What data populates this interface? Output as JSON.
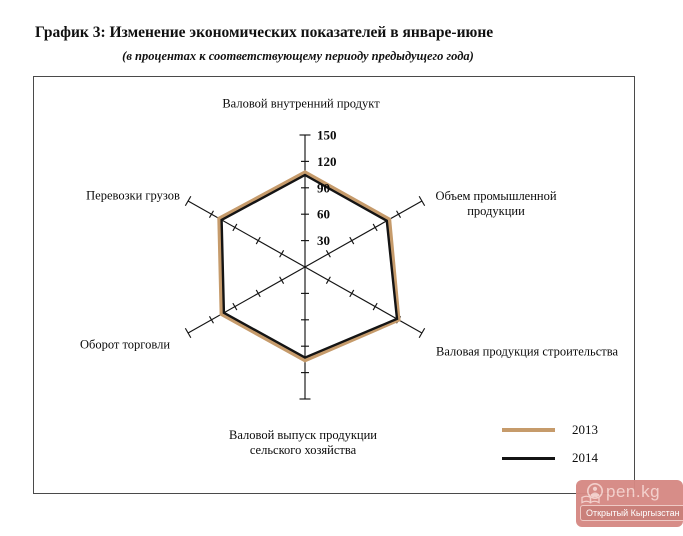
{
  "page": {
    "title": "График 3: Изменение экономических показателей в январе-июне",
    "subtitle": "(в процентах к соответствующему периоду предыдущего года)"
  },
  "chart_data": {
    "type": "radar",
    "categories": [
      "Валовой внутренний продукт",
      "Объем промышленной продукции",
      "Валовая продукция строительства",
      "Валовой выпуск продукции сельского хозяйства",
      "Оборот торговли",
      "Перевозки грузов"
    ],
    "series": [
      {
        "name": "2013",
        "color": "#C69B6B",
        "stroke_width": 4,
        "values": [
          107.5,
          108,
          120,
          106,
          107,
          110
        ]
      },
      {
        "name": "2014",
        "color": "#141414",
        "stroke_width": 2.4,
        "values": [
          104.5,
          105,
          118,
          103,
          104,
          107
        ]
      }
    ],
    "r_axis": {
      "min": 0,
      "max": 150,
      "step": 30,
      "tick_labels": [
        "30",
        "60",
        "90",
        "120",
        "150"
      ]
    },
    "grid": "spokes-with-ticks-only",
    "legend_position": "bottom-right",
    "axis_line_color": "#141414"
  },
  "watermark": {
    "brand": "pen.kg",
    "tagline": "Открытый Кыргызстан",
    "bg_color": "#D68984"
  }
}
